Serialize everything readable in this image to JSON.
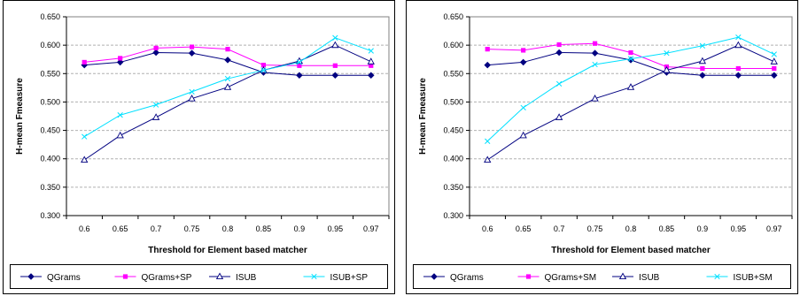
{
  "chart_data": [
    {
      "type": "line",
      "title": "",
      "xlabel": "Threshold for Element based matcher",
      "ylabel": "H-mean Fmeasure",
      "categories": [
        "0.6",
        "0.65",
        "0.7",
        "0.75",
        "0.8",
        "0.85",
        "0.9",
        "0.95",
        "0.97"
      ],
      "ylim": [
        0.3,
        0.65
      ],
      "yticks": [
        "0.300",
        "0.350",
        "0.400",
        "0.450",
        "0.500",
        "0.550",
        "0.600",
        "0.650"
      ],
      "grid": true,
      "legend": "bottom",
      "series": [
        {
          "name": "QGrams",
          "values": [
            0.565,
            0.57,
            0.587,
            0.586,
            0.574,
            0.552,
            0.547,
            0.547,
            0.547
          ],
          "color": "#000080",
          "marker": "diamond"
        },
        {
          "name": "QGrams+SP",
          "values": [
            0.57,
            0.577,
            0.595,
            0.597,
            0.593,
            0.565,
            0.564,
            0.564,
            0.564
          ],
          "color": "#ff00ff",
          "marker": "square"
        },
        {
          "name": "ISUB",
          "values": [
            0.398,
            0.441,
            0.473,
            0.506,
            0.526,
            0.556,
            0.572,
            0.6,
            0.571
          ],
          "color": "#000080",
          "marker": "triangle"
        },
        {
          "name": "ISUB+SP",
          "values": [
            0.439,
            0.477,
            0.495,
            0.518,
            0.541,
            0.556,
            0.57,
            0.613,
            0.59
          ],
          "color": "#00e0ff",
          "marker": "x"
        }
      ]
    },
    {
      "type": "line",
      "title": "",
      "xlabel": "Threshold for Element based matcher",
      "ylabel": "H-mean Fmeasure",
      "categories": [
        "0.6",
        "0.65",
        "0.7",
        "0.75",
        "0.8",
        "0.85",
        "0.9",
        "0.95",
        "0.97"
      ],
      "ylim": [
        0.3,
        0.65
      ],
      "yticks": [
        "0.300",
        "0.350",
        "0.400",
        "0.450",
        "0.500",
        "0.550",
        "0.600",
        "0.650"
      ],
      "grid": true,
      "legend": "bottom",
      "series": [
        {
          "name": "QGrams",
          "values": [
            0.565,
            0.57,
            0.587,
            0.586,
            0.574,
            0.552,
            0.547,
            0.547,
            0.547
          ],
          "color": "#000080",
          "marker": "diamond"
        },
        {
          "name": "QGrams+SM",
          "values": [
            0.593,
            0.591,
            0.601,
            0.603,
            0.587,
            0.562,
            0.559,
            0.559,
            0.559
          ],
          "color": "#ff00ff",
          "marker": "square"
        },
        {
          "name": "ISUB",
          "values": [
            0.398,
            0.441,
            0.473,
            0.506,
            0.526,
            0.556,
            0.572,
            0.6,
            0.571
          ],
          "color": "#000080",
          "marker": "triangle"
        },
        {
          "name": "ISUB+SM",
          "values": [
            0.431,
            0.49,
            0.532,
            0.566,
            0.576,
            0.586,
            0.599,
            0.614,
            0.584
          ],
          "color": "#00e0ff",
          "marker": "x"
        }
      ]
    }
  ]
}
